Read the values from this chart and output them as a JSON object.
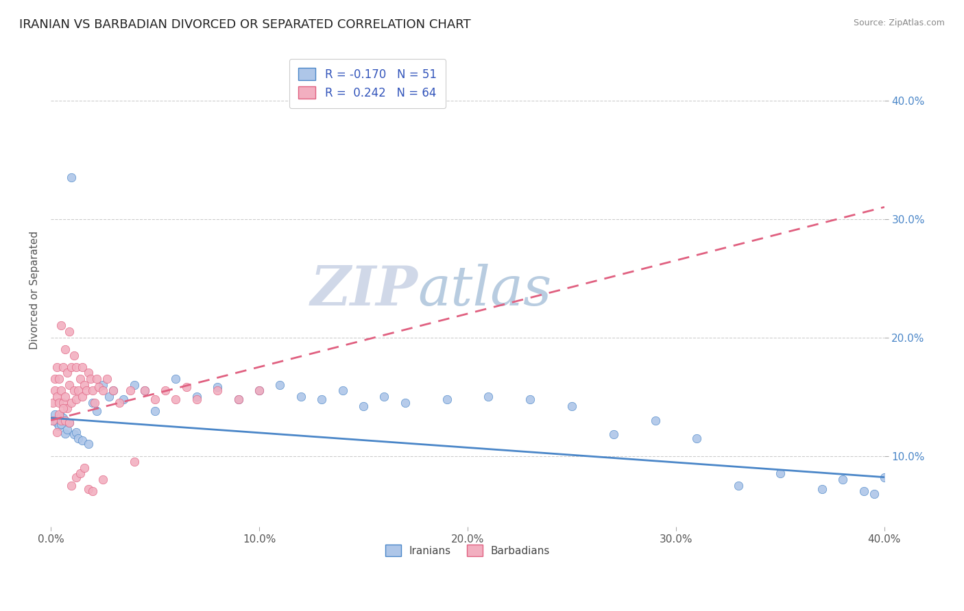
{
  "title": "IRANIAN VS BARBADIAN DIVORCED OR SEPARATED CORRELATION CHART",
  "source_text": "Source: ZipAtlas.com",
  "ylabel": "Divorced or Separated",
  "xlim": [
    0.0,
    0.4
  ],
  "ylim": [
    0.04,
    0.44
  ],
  "xtick_labels": [
    "0.0%",
    "10.0%",
    "20.0%",
    "30.0%",
    "40.0%"
  ],
  "xtick_vals": [
    0.0,
    0.1,
    0.2,
    0.3,
    0.4
  ],
  "ytick_labels": [
    "10.0%",
    "20.0%",
    "30.0%",
    "40.0%"
  ],
  "ytick_vals": [
    0.1,
    0.2,
    0.3,
    0.4
  ],
  "iranian_color": "#aec6e8",
  "barbadian_color": "#f2afc0",
  "iranian_line_color": "#4a86c8",
  "barbadian_line_color": "#e06080",
  "R_iranian": -0.17,
  "N_iranian": 51,
  "R_barbadian": 0.242,
  "N_barbadian": 64,
  "watermark_zip": "ZIP",
  "watermark_atlas": "atlas",
  "background_color": "#ffffff",
  "grid_color": "#cccccc",
  "iranians_scatter_x": [
    0.001,
    0.002,
    0.003,
    0.004,
    0.005,
    0.005,
    0.006,
    0.007,
    0.008,
    0.009,
    0.01,
    0.011,
    0.012,
    0.013,
    0.015,
    0.018,
    0.02,
    0.022,
    0.025,
    0.028,
    0.03,
    0.035,
    0.04,
    0.045,
    0.05,
    0.06,
    0.07,
    0.08,
    0.09,
    0.1,
    0.11,
    0.12,
    0.13,
    0.14,
    0.15,
    0.16,
    0.17,
    0.19,
    0.21,
    0.23,
    0.25,
    0.27,
    0.29,
    0.31,
    0.33,
    0.35,
    0.37,
    0.38,
    0.39,
    0.395,
    0.4
  ],
  "iranians_scatter_y": [
    0.13,
    0.135,
    0.128,
    0.125,
    0.133,
    0.127,
    0.132,
    0.119,
    0.122,
    0.128,
    0.335,
    0.118,
    0.12,
    0.115,
    0.113,
    0.11,
    0.145,
    0.138,
    0.16,
    0.15,
    0.155,
    0.148,
    0.16,
    0.155,
    0.138,
    0.165,
    0.15,
    0.158,
    0.148,
    0.155,
    0.16,
    0.15,
    0.148,
    0.155,
    0.142,
    0.15,
    0.145,
    0.148,
    0.15,
    0.148,
    0.142,
    0.118,
    0.13,
    0.115,
    0.075,
    0.085,
    0.072,
    0.08,
    0.07,
    0.068,
    0.082
  ],
  "barbadians_scatter_x": [
    0.001,
    0.001,
    0.002,
    0.002,
    0.003,
    0.003,
    0.004,
    0.004,
    0.005,
    0.005,
    0.005,
    0.006,
    0.006,
    0.007,
    0.007,
    0.008,
    0.008,
    0.009,
    0.009,
    0.01,
    0.01,
    0.011,
    0.011,
    0.012,
    0.012,
    0.013,
    0.014,
    0.015,
    0.015,
    0.016,
    0.017,
    0.018,
    0.019,
    0.02,
    0.021,
    0.022,
    0.023,
    0.025,
    0.027,
    0.03,
    0.033,
    0.038,
    0.04,
    0.045,
    0.05,
    0.055,
    0.06,
    0.065,
    0.07,
    0.08,
    0.09,
    0.1,
    0.003,
    0.004,
    0.006,
    0.007,
    0.009,
    0.01,
    0.012,
    0.014,
    0.016,
    0.018,
    0.02,
    0.025
  ],
  "barbadians_scatter_y": [
    0.13,
    0.145,
    0.155,
    0.165,
    0.15,
    0.175,
    0.145,
    0.165,
    0.13,
    0.155,
    0.21,
    0.145,
    0.175,
    0.15,
    0.19,
    0.14,
    0.17,
    0.16,
    0.205,
    0.145,
    0.175,
    0.155,
    0.185,
    0.148,
    0.175,
    0.155,
    0.165,
    0.15,
    0.175,
    0.16,
    0.155,
    0.17,
    0.165,
    0.155,
    0.145,
    0.165,
    0.158,
    0.155,
    0.165,
    0.155,
    0.145,
    0.155,
    0.095,
    0.155,
    0.148,
    0.155,
    0.148,
    0.158,
    0.148,
    0.155,
    0.148,
    0.155,
    0.12,
    0.135,
    0.14,
    0.13,
    0.128,
    0.075,
    0.082,
    0.085,
    0.09,
    0.072,
    0.07,
    0.08
  ],
  "iranian_trend_start_y": 0.132,
  "iranian_trend_end_y": 0.082,
  "barbadian_trend_start_y": 0.13,
  "barbadian_trend_end_y": 0.31
}
